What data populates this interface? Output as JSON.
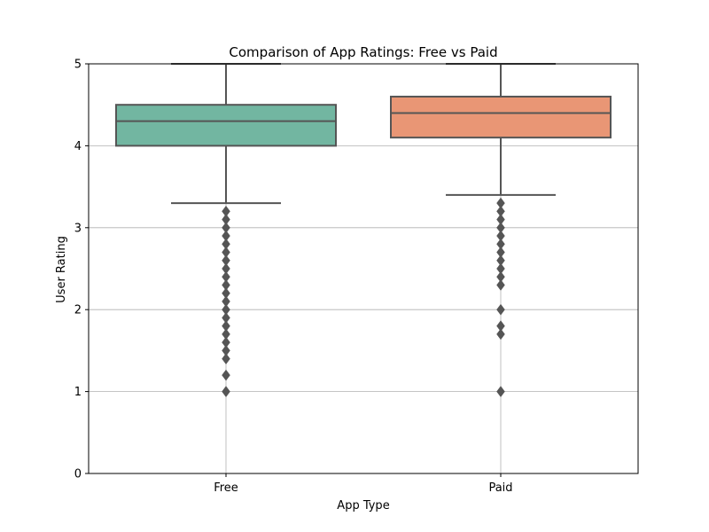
{
  "chart_data": {
    "type": "box",
    "title": "Comparison of App Ratings: Free vs Paid",
    "xlabel": "App Type",
    "ylabel": "User Rating",
    "ylim": [
      0,
      5
    ],
    "yticks": [
      "0",
      "1",
      "2",
      "3",
      "4",
      "5"
    ],
    "categories": [
      "Free",
      "Paid"
    ],
    "grid": true,
    "boxes": [
      {
        "category": "Free",
        "color": "#72b6a1",
        "whisker_low": 3.3,
        "q1": 4.0,
        "median": 4.3,
        "q3": 4.5,
        "whisker_high": 5.0,
        "outliers": [
          3.2,
          3.1,
          3.0,
          2.9,
          2.8,
          2.7,
          2.6,
          2.5,
          2.4,
          2.3,
          2.2,
          2.1,
          2.0,
          1.9,
          1.8,
          1.7,
          1.6,
          1.5,
          1.4,
          1.2,
          1.0
        ]
      },
      {
        "category": "Paid",
        "color": "#e99675",
        "whisker_low": 3.4,
        "q1": 4.1,
        "median": 4.4,
        "q3": 4.6,
        "whisker_high": 5.0,
        "outliers": [
          3.3,
          3.2,
          3.1,
          3.0,
          2.9,
          2.8,
          2.7,
          2.6,
          2.5,
          2.4,
          2.3,
          2.0,
          1.8,
          1.7,
          1.0
        ]
      }
    ],
    "colors": {
      "line": "#555555",
      "grid": "#b0b0b0",
      "axis": "#000000"
    }
  }
}
